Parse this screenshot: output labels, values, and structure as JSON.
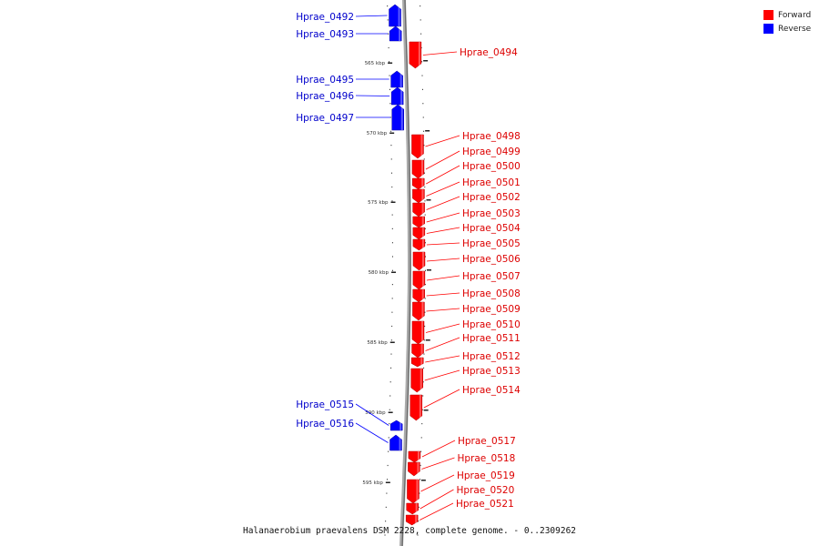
{
  "legend": {
    "forward_label": "Forward",
    "reverse_label": "Reverse",
    "forward_color": "#ff0000",
    "reverse_color": "#0000ff"
  },
  "footer": "Halanaerobium praevalens DSM 2228, complete genome. - 0..2309262",
  "ticks": [
    "565 kbp",
    "570 kbp",
    "575 kbp",
    "580 kbp",
    "585 kbp",
    "590 kbp",
    "595 kbp"
  ],
  "genes": [
    {
      "name": "Hprae_0492",
      "strand": "reverse"
    },
    {
      "name": "Hprae_0493",
      "strand": "reverse"
    },
    {
      "name": "Hprae_0494",
      "strand": "forward"
    },
    {
      "name": "Hprae_0495",
      "strand": "reverse"
    },
    {
      "name": "Hprae_0496",
      "strand": "reverse"
    },
    {
      "name": "Hprae_0497",
      "strand": "reverse"
    },
    {
      "name": "Hprae_0498",
      "strand": "forward"
    },
    {
      "name": "Hprae_0499",
      "strand": "forward"
    },
    {
      "name": "Hprae_0500",
      "strand": "forward"
    },
    {
      "name": "Hprae_0501",
      "strand": "forward"
    },
    {
      "name": "Hprae_0502",
      "strand": "forward"
    },
    {
      "name": "Hprae_0503",
      "strand": "forward"
    },
    {
      "name": "Hprae_0504",
      "strand": "forward"
    },
    {
      "name": "Hprae_0505",
      "strand": "forward"
    },
    {
      "name": "Hprae_0506",
      "strand": "forward"
    },
    {
      "name": "Hprae_0507",
      "strand": "forward"
    },
    {
      "name": "Hprae_0508",
      "strand": "forward"
    },
    {
      "name": "Hprae_0509",
      "strand": "forward"
    },
    {
      "name": "Hprae_0510",
      "strand": "forward"
    },
    {
      "name": "Hprae_0511",
      "strand": "forward"
    },
    {
      "name": "Hprae_0512",
      "strand": "forward"
    },
    {
      "name": "Hprae_0513",
      "strand": "forward"
    },
    {
      "name": "Hprae_0514",
      "strand": "forward"
    },
    {
      "name": "Hprae_0515",
      "strand": "reverse"
    },
    {
      "name": "Hprae_0516",
      "strand": "reverse"
    },
    {
      "name": "Hprae_0517",
      "strand": "forward"
    },
    {
      "name": "Hprae_0518",
      "strand": "forward"
    },
    {
      "name": "Hprae_0519",
      "strand": "forward"
    },
    {
      "name": "Hprae_0520",
      "strand": "forward"
    },
    {
      "name": "Hprae_0521",
      "strand": "forward"
    }
  ]
}
